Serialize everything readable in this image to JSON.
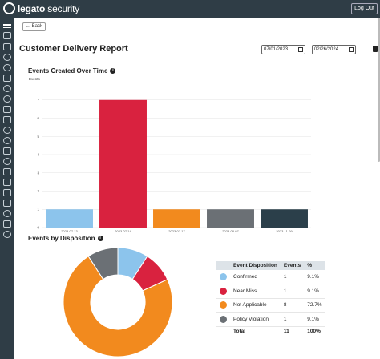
{
  "header": {
    "logo_text_bold": "legato",
    "logo_text": " security",
    "logout_label": "Log Out"
  },
  "sidebar": {
    "icons": [
      "menu-icon",
      "dashboard-icon",
      "grid-icon",
      "gauge-icon",
      "gear-icon",
      "tag-icon",
      "user-icon",
      "eye-icon",
      "shield-icon",
      "tools-icon",
      "rocket-icon",
      "cloud-icon",
      "alert-icon",
      "refresh-icon",
      "chart-icon",
      "building-icon",
      "list-icon",
      "doc-icon",
      "globe-icon",
      "org-icon",
      "user-icon"
    ]
  },
  "page": {
    "back_label": "← Back",
    "title": "Customer Delivery Report",
    "date_from": "07/01/2023",
    "date_to": "02/26/2024"
  },
  "events_chart": {
    "heading": "Events Created Over Time"
  },
  "disposition": {
    "heading": "Events by Disposition",
    "headers": [
      "Event Disposition",
      "Events",
      "%"
    ],
    "rows": [
      {
        "label": "Confirmed",
        "events": "1",
        "pct": "9.1%",
        "color": "#8cc4ec"
      },
      {
        "label": "Near Miss",
        "events": "1",
        "pct": "9.1%",
        "color": "#d9223f"
      },
      {
        "label": "Not Applicable",
        "events": "8",
        "pct": "72.7%",
        "color": "#f28a1e"
      },
      {
        "label": "Policy Violation",
        "events": "1",
        "pct": "9.1%",
        "color": "#6b7075"
      }
    ],
    "total": {
      "label": "Total",
      "events": "11",
      "pct": "100%"
    }
  },
  "chart_data": [
    {
      "type": "bar",
      "title": "Events Created Over Time",
      "ylabel": "Events",
      "categories": [
        "2023-07-13",
        "2023-07-14",
        "2023-07-17",
        "2023-08-07",
        "2023-11-09"
      ],
      "values": [
        1,
        7,
        1,
        1,
        1
      ],
      "colors": [
        "#8cc4ec",
        "#d9223f",
        "#f28a1e",
        "#6b7075",
        "#2b3f4a"
      ],
      "ylim": [
        0,
        8
      ],
      "yticks": [
        0,
        1,
        2,
        3,
        4,
        5,
        6,
        7
      ],
      "grid": true
    },
    {
      "type": "pie",
      "title": "Events by Disposition",
      "labels": [
        "Confirmed",
        "Near Miss",
        "Not Applicable",
        "Policy Violation"
      ],
      "values": [
        1,
        1,
        8,
        1
      ],
      "colors": [
        "#8cc4ec",
        "#d9223f",
        "#f28a1e",
        "#6b7075"
      ],
      "donut": true
    }
  ]
}
